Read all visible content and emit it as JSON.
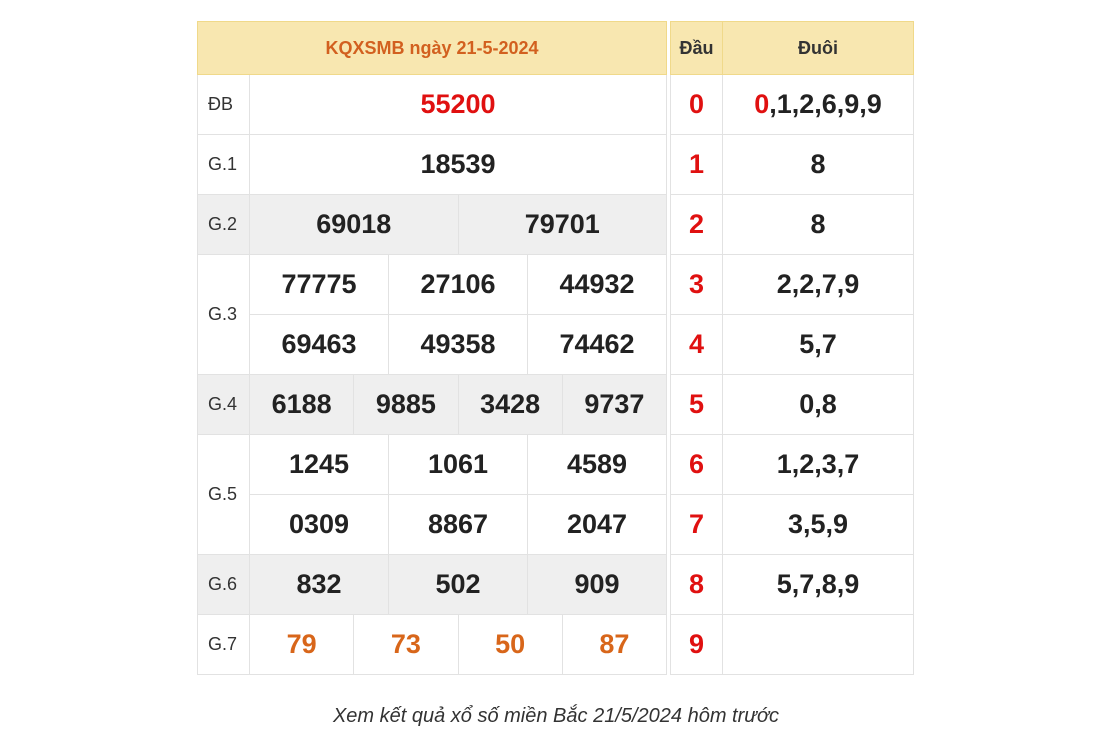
{
  "results": {
    "title": "KQXSMB ngày 21-5-2024",
    "labels": {
      "db": "ĐB",
      "g1": "G.1",
      "g2": "G.2",
      "g3": "G.3",
      "g4": "G.4",
      "g5": "G.5",
      "g6": "G.6",
      "g7": "G.7"
    },
    "db": "55200",
    "g1": "18539",
    "g2": [
      "69018",
      "79701"
    ],
    "g3": [
      "77775",
      "27106",
      "44932",
      "69463",
      "49358",
      "74462"
    ],
    "g4": [
      "6188",
      "9885",
      "3428",
      "9737"
    ],
    "g5": [
      "1245",
      "1061",
      "4589",
      "0309",
      "8867",
      "2047"
    ],
    "g6": [
      "832",
      "502",
      "909"
    ],
    "g7": [
      "79",
      "73",
      "50",
      "87"
    ]
  },
  "loto": {
    "head_label": "Đầu",
    "tail_label": "Đuôi",
    "rows": [
      {
        "head": "0",
        "tail_first": "0",
        "tail_rest": ",1,2,6,9,9"
      },
      {
        "head": "1",
        "tail": "8"
      },
      {
        "head": "2",
        "tail": "8"
      },
      {
        "head": "3",
        "tail": "2,2,7,9"
      },
      {
        "head": "4",
        "tail": "5,7"
      },
      {
        "head": "5",
        "tail": "0,8"
      },
      {
        "head": "6",
        "tail": "1,2,3,7"
      },
      {
        "head": "7",
        "tail": "3,5,9"
      },
      {
        "head": "8",
        "tail": "5,7,8,9"
      },
      {
        "head": "9",
        "tail": ""
      }
    ]
  },
  "caption": "Xem kết quả xổ số miền Bắc 21/5/2024 hôm trước",
  "colors": {
    "header_bg": "#f8e7b0",
    "title": "#d2601f",
    "special": "#e01010",
    "g7": "#d8661a",
    "stripe": "#efefef"
  }
}
